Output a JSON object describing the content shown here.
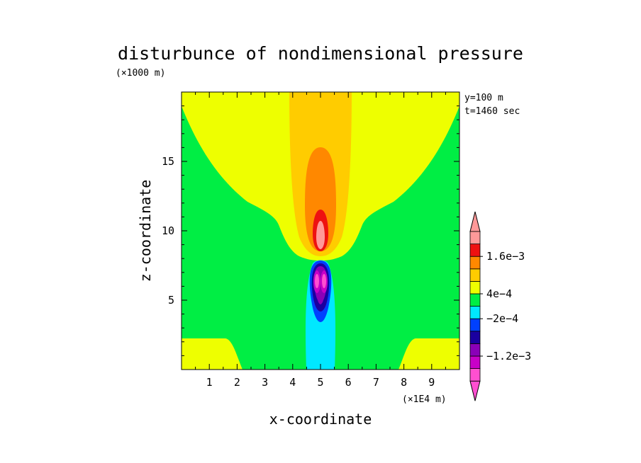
{
  "chart_data": {
    "type": "heatmap",
    "subtype": "filled-contour",
    "title": "disturbunce of nondimensional pressure",
    "xlabel": "x-coordinate",
    "ylabel": "z-coordinate",
    "x_unit": "(×1E4 m)",
    "y_unit": "(×1000 m)",
    "info": [
      "y=100 m",
      "t=1460 sec"
    ],
    "xlim": [
      0,
      10
    ],
    "ylim": [
      0,
      20
    ],
    "x_ticks": [
      1,
      2,
      3,
      4,
      5,
      6,
      7,
      8,
      9
    ],
    "y_ticks": [
      5,
      10,
      15
    ],
    "colorbar": {
      "levels": [
        -0.0016,
        -0.0012,
        -0.0008,
        -0.0004,
        -0.0002,
        0.0002,
        0.0004,
        0.0008,
        0.0012,
        0.0016
      ],
      "labels": [
        "1.6e−3",
        "4e−4",
        "−2e−4",
        "−1.2e−3"
      ],
      "colors": [
        "#ff4fd0",
        "#c800c8",
        "#8a00b8",
        "#1a00a0",
        "#0040ff",
        "#00e8ff",
        "#00ee44",
        "#eeff00",
        "#ffcc00",
        "#ff8800",
        "#ee1111",
        "#ff9999"
      ],
      "extend": "both"
    }
  }
}
